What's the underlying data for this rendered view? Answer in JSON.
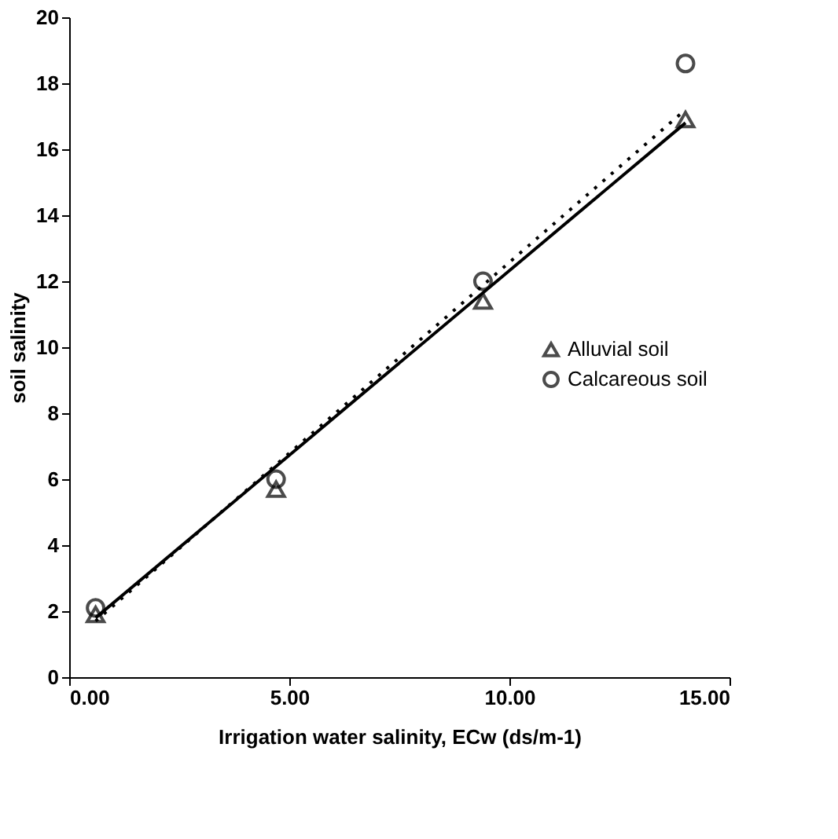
{
  "chart_data": {
    "type": "scatter",
    "xlabel": "Irrigation water salinity, ECw (ds/m-1)",
    "ylabel": "soil salinity",
    "xlim": [
      0,
      15
    ],
    "ylim": [
      0,
      20
    ],
    "xticks": [
      {
        "value": 0,
        "label": "0.00"
      },
      {
        "value": 5,
        "label": "5.00"
      },
      {
        "value": 10,
        "label": "10.00"
      },
      {
        "value": 15,
        "label": "15.00"
      }
    ],
    "yticks": [
      0,
      2,
      4,
      6,
      8,
      10,
      12,
      14,
      16,
      18,
      20
    ],
    "grid": false,
    "legend": "right",
    "series": [
      {
        "name": "Alluvial soil",
        "marker": "triangle",
        "color": "#000000",
        "x": [
          0.6,
          4.7,
          9.4,
          14.0
        ],
        "values": [
          1.9,
          5.7,
          11.4,
          16.9
        ]
      },
      {
        "name": "Calcareous soil",
        "marker": "circle",
        "color": "#000000",
        "x": [
          0.6,
          4.7,
          9.4,
          14.0
        ],
        "values": [
          2.1,
          6.0,
          12.0,
          18.6
        ]
      },
      {
        "type": "line",
        "line_style": "solid",
        "color": "#000000",
        "x": [
          0.6,
          14.0
        ],
        "values": [
          1.8,
          16.8
        ]
      },
      {
        "type": "line",
        "line_style": "dotted",
        "color": "#000000",
        "x": [
          0.6,
          14.0
        ],
        "values": [
          1.7,
          17.2
        ]
      }
    ]
  }
}
